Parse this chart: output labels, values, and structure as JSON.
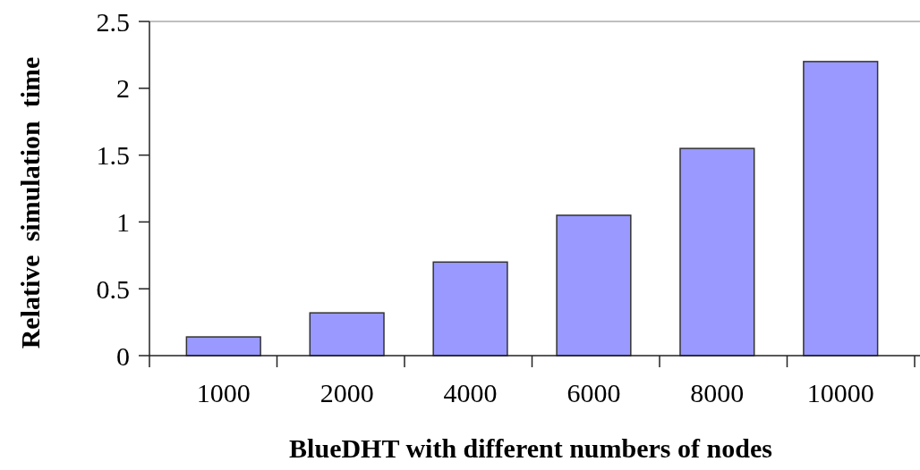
{
  "chart_data": {
    "type": "bar",
    "xlabel": "BlueDHT with different numbers of nodes",
    "ylabel": "Relative  simulation  time",
    "categories": [
      "1000",
      "2000",
      "4000",
      "6000",
      "8000",
      "10000"
    ],
    "values": [
      0.14,
      0.32,
      0.7,
      1.05,
      1.55,
      2.2
    ],
    "color": "#9999ff",
    "ylim": [
      0,
      2.5
    ],
    "yticks": [
      0,
      0.5,
      1,
      1.5,
      2,
      2.5
    ],
    "grid": false
  }
}
